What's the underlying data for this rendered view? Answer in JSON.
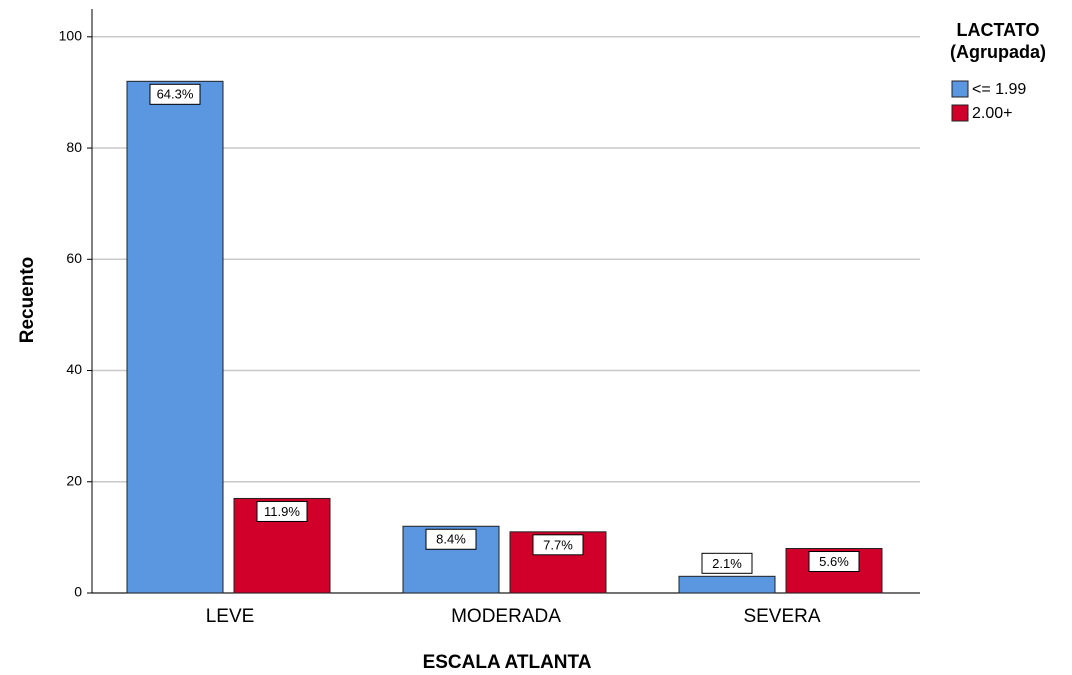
{
  "chart_data": {
    "type": "bar",
    "categories": [
      "LEVE",
      "MODERADA",
      "SEVERA"
    ],
    "series": [
      {
        "name": "<= 1.99",
        "color": "#5b97e0",
        "values": [
          92,
          12,
          3
        ],
        "percent_labels": [
          "64.3%",
          "8.4%",
          "2.1%"
        ]
      },
      {
        "name": "2.00+",
        "color": "#d0002a",
        "values": [
          17,
          11,
          8
        ],
        "percent_labels": [
          "11.9%",
          "7.7%",
          "5.6%"
        ]
      }
    ],
    "x_label": "ESCALA ATLANTA",
    "y_label": "Recuento",
    "legend_title": [
      "LACTATO",
      "(Agrupada)"
    ],
    "ylim": [
      0,
      105
    ],
    "yticks": [
      0,
      20,
      40,
      60,
      80,
      100
    ],
    "grid": true,
    "legend": "right"
  }
}
